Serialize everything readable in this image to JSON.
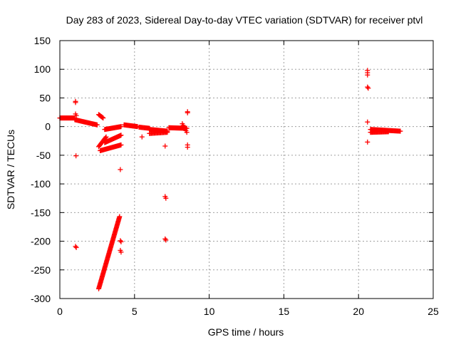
{
  "chart_data": {
    "type": "scatter",
    "title": "Day 283 of 2023, Sidereal Day-to-day VTEC variation (SDTVAR) for receiver ptvl",
    "xlabel": "GPS time / hours",
    "ylabel": "SDTVAR / TECUs",
    "xlim": [
      0,
      25
    ],
    "ylim": [
      -300,
      150
    ],
    "xticks": [
      0,
      5,
      10,
      15,
      20,
      25
    ],
    "xtick_labels": [
      "0",
      "5",
      "10",
      "15",
      "20",
      "25"
    ],
    "yticks": [
      150,
      100,
      50,
      0,
      -50,
      -100,
      -150,
      -200,
      -250,
      -300
    ],
    "ytick_labels": [
      "150",
      "100",
      "50",
      "0",
      "-50",
      "-100",
      "-150",
      "-200",
      "-250",
      "-300"
    ],
    "grid": true,
    "marker": "plus",
    "color": "#ff0000",
    "segments": [
      {
        "x0": 0.0,
        "x1": 1.0,
        "y0": 15,
        "y1": 15,
        "n": 30
      },
      {
        "x0": 1.0,
        "x1": 2.5,
        "y0": 12,
        "y1": 3,
        "n": 30
      },
      {
        "x0": 2.6,
        "x1": 2.9,
        "y0": 21,
        "y1": 15,
        "n": 8
      },
      {
        "x0": 2.6,
        "x1": 3.1,
        "y0": -35,
        "y1": -18,
        "n": 12
      },
      {
        "x0": 2.7,
        "x1": 4.1,
        "y0": -42,
        "y1": -32,
        "n": 30
      },
      {
        "x0": 3.0,
        "x1": 4.1,
        "y0": -28,
        "y1": -15,
        "n": 25
      },
      {
        "x0": 3.0,
        "x1": 4.1,
        "y0": -5,
        "y1": 0,
        "n": 25
      },
      {
        "x0": 4.3,
        "x1": 5.2,
        "y0": 3,
        "y1": 0,
        "n": 20
      },
      {
        "x0": 5.3,
        "x1": 6.0,
        "y0": -1,
        "y1": -3,
        "n": 14
      },
      {
        "x0": 6.0,
        "x1": 7.2,
        "y0": -5,
        "y1": -8,
        "n": 28
      },
      {
        "x0": 6.0,
        "x1": 7.2,
        "y0": -12,
        "y1": -10,
        "n": 20
      },
      {
        "x0": 7.3,
        "x1": 8.5,
        "y0": -2,
        "y1": -3,
        "n": 26
      },
      {
        "x0": 8.2,
        "x1": 8.5,
        "y0": 5,
        "y1": -10,
        "n": 6
      },
      {
        "x0": 2.6,
        "x1": 4.0,
        "y0": -283,
        "y1": -157,
        "n": 80
      },
      {
        "x0": 20.8,
        "x1": 22.8,
        "y0": -5,
        "y1": -8,
        "n": 40
      },
      {
        "x0": 20.8,
        "x1": 22.0,
        "y0": -10,
        "y1": -9,
        "n": 22
      }
    ],
    "points": [
      {
        "x": 1.05,
        "y": 44
      },
      {
        "x": 1.05,
        "y": 42
      },
      {
        "x": 1.05,
        "y": 22
      },
      {
        "x": 1.1,
        "y": 19
      },
      {
        "x": 1.08,
        "y": -51
      },
      {
        "x": 1.05,
        "y": -209
      },
      {
        "x": 1.1,
        "y": -211
      },
      {
        "x": 4.05,
        "y": -75
      },
      {
        "x": 4.05,
        "y": -199
      },
      {
        "x": 4.1,
        "y": -201
      },
      {
        "x": 4.05,
        "y": -216
      },
      {
        "x": 4.1,
        "y": -219
      },
      {
        "x": 5.5,
        "y": -18
      },
      {
        "x": 7.05,
        "y": -34
      },
      {
        "x": 7.05,
        "y": -122
      },
      {
        "x": 7.1,
        "y": -125
      },
      {
        "x": 7.05,
        "y": -196
      },
      {
        "x": 7.1,
        "y": -198
      },
      {
        "x": 8.55,
        "y": 26
      },
      {
        "x": 8.55,
        "y": 24
      },
      {
        "x": 8.55,
        "y": -32
      },
      {
        "x": 8.55,
        "y": -36
      },
      {
        "x": 20.6,
        "y": 98
      },
      {
        "x": 20.6,
        "y": 94
      },
      {
        "x": 20.6,
        "y": 90
      },
      {
        "x": 20.6,
        "y": 69
      },
      {
        "x": 20.65,
        "y": 67
      },
      {
        "x": 20.6,
        "y": 8
      },
      {
        "x": 20.6,
        "y": -27
      }
    ]
  }
}
